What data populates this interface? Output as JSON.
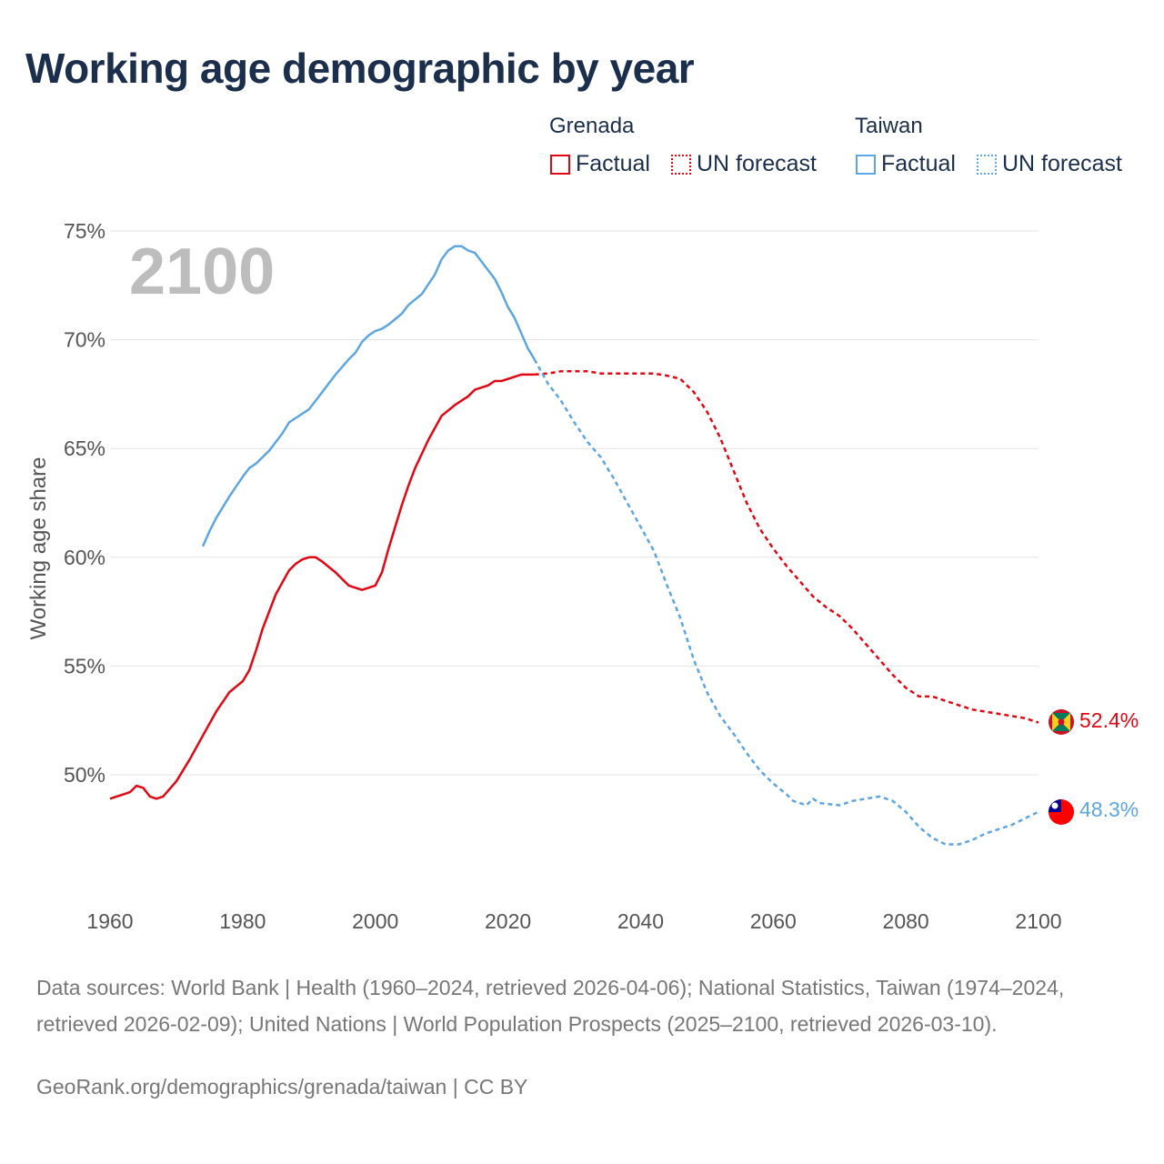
{
  "title": "Working age demographic by year",
  "legend": {
    "groups": [
      {
        "name": "Grenada",
        "factual": "Factual",
        "forecast": "UN forecast",
        "color": "#e30613"
      },
      {
        "name": "Taiwan",
        "factual": "Factual",
        "forecast": "UN forecast",
        "color": "#5ea6e2"
      }
    ]
  },
  "year_marker": "2100",
  "footer": {
    "sources": "Data sources: World Bank | Health (1960–2024, retrieved 2026-04-06); National Statistics, Taiwan (1974–2024, retrieved 2026-02-09); United Nations | World Population Prospects (2025–2100, retrieved 2026-03-10).",
    "link": "GeoRank.org/demographics/grenada/taiwan | CC BY"
  },
  "end_labels": {
    "grenada": "52.4%",
    "taiwan": "48.3%"
  },
  "icons": {
    "grenada": "grenada-flag-icon",
    "taiwan": "taiwan-flag-icon"
  },
  "chart_data": {
    "type": "line",
    "title": "Working age demographic by year",
    "xlabel": "",
    "ylabel": "Working age share",
    "xlim": [
      1960,
      2100
    ],
    "ylim": [
      45,
      76
    ],
    "x_ticks": [
      1960,
      1980,
      2000,
      2020,
      2040,
      2060,
      2080,
      2100
    ],
    "y_ticks": [
      50,
      55,
      60,
      65,
      70,
      75
    ],
    "y_tick_labels": [
      "50%",
      "55%",
      "60%",
      "65%",
      "70%",
      "75%"
    ],
    "x_tick_labels": [
      "1960",
      "1980",
      "2000",
      "2020",
      "2040",
      "2060",
      "2080",
      "2100"
    ],
    "series": [
      {
        "name": "Grenada",
        "color": "#e30613",
        "factual": [
          [
            1960,
            48.9
          ],
          [
            1962,
            49.1
          ],
          [
            1963,
            49.2
          ],
          [
            1964,
            49.5
          ],
          [
            1965,
            49.4
          ],
          [
            1966,
            49.0
          ],
          [
            1967,
            48.9
          ],
          [
            1968,
            49.0
          ],
          [
            1970,
            49.7
          ],
          [
            1972,
            50.7
          ],
          [
            1974,
            51.8
          ],
          [
            1976,
            52.9
          ],
          [
            1978,
            53.8
          ],
          [
            1980,
            54.3
          ],
          [
            1981,
            54.8
          ],
          [
            1982,
            55.7
          ],
          [
            1983,
            56.7
          ],
          [
            1985,
            58.3
          ],
          [
            1987,
            59.4
          ],
          [
            1988,
            59.7
          ],
          [
            1989,
            59.9
          ],
          [
            1990,
            60.0
          ],
          [
            1991,
            60.0
          ],
          [
            1992,
            59.8
          ],
          [
            1994,
            59.3
          ],
          [
            1996,
            58.7
          ],
          [
            1998,
            58.5
          ],
          [
            2000,
            58.7
          ],
          [
            2001,
            59.3
          ],
          [
            2002,
            60.4
          ],
          [
            2004,
            62.4
          ],
          [
            2005,
            63.3
          ],
          [
            2006,
            64.1
          ],
          [
            2008,
            65.4
          ],
          [
            2010,
            66.5
          ],
          [
            2012,
            67.0
          ],
          [
            2014,
            67.4
          ],
          [
            2015,
            67.7
          ],
          [
            2017,
            67.9
          ],
          [
            2018,
            68.1
          ],
          [
            2019,
            68.1
          ],
          [
            2020,
            68.2
          ],
          [
            2022,
            68.4
          ],
          [
            2024,
            68.4
          ]
        ],
        "forecast": [
          [
            2024,
            68.4
          ],
          [
            2026,
            68.45
          ],
          [
            2028,
            68.55
          ],
          [
            2030,
            68.55
          ],
          [
            2032,
            68.55
          ],
          [
            2034,
            68.45
          ],
          [
            2036,
            68.45
          ],
          [
            2040,
            68.45
          ],
          [
            2042,
            68.45
          ],
          [
            2044,
            68.35
          ],
          [
            2046,
            68.2
          ],
          [
            2048,
            67.6
          ],
          [
            2050,
            66.7
          ],
          [
            2052,
            65.5
          ],
          [
            2054,
            64.0
          ],
          [
            2056,
            62.5
          ],
          [
            2058,
            61.3
          ],
          [
            2060,
            60.4
          ],
          [
            2062,
            59.6
          ],
          [
            2064,
            58.9
          ],
          [
            2066,
            58.2
          ],
          [
            2068,
            57.7
          ],
          [
            2070,
            57.3
          ],
          [
            2072,
            56.7
          ],
          [
            2074,
            56.0
          ],
          [
            2076,
            55.3
          ],
          [
            2078,
            54.6
          ],
          [
            2080,
            54.0
          ],
          [
            2082,
            53.6
          ],
          [
            2084,
            53.6
          ],
          [
            2086,
            53.4
          ],
          [
            2088,
            53.2
          ],
          [
            2090,
            53.0
          ],
          [
            2094,
            52.8
          ],
          [
            2098,
            52.6
          ],
          [
            2100,
            52.4
          ]
        ]
      },
      {
        "name": "Taiwan",
        "color": "#5ea6e2",
        "factual": [
          [
            1974,
            60.5
          ],
          [
            1975,
            61.2
          ],
          [
            1976,
            61.8
          ],
          [
            1978,
            62.8
          ],
          [
            1980,
            63.7
          ],
          [
            1981,
            64.1
          ],
          [
            1982,
            64.3
          ],
          [
            1984,
            64.9
          ],
          [
            1986,
            65.7
          ],
          [
            1987,
            66.2
          ],
          [
            1990,
            66.8
          ],
          [
            1991,
            67.2
          ],
          [
            1992,
            67.6
          ],
          [
            1994,
            68.4
          ],
          [
            1996,
            69.1
          ],
          [
            1997,
            69.4
          ],
          [
            1998,
            69.9
          ],
          [
            1999,
            70.2
          ],
          [
            2000,
            70.4
          ],
          [
            2001,
            70.5
          ],
          [
            2002,
            70.7
          ],
          [
            2004,
            71.2
          ],
          [
            2005,
            71.6
          ],
          [
            2007,
            72.1
          ],
          [
            2009,
            73.0
          ],
          [
            2010,
            73.7
          ],
          [
            2011,
            74.1
          ],
          [
            2012,
            74.3
          ],
          [
            2013,
            74.3
          ],
          [
            2014,
            74.1
          ],
          [
            2015,
            74.0
          ],
          [
            2016,
            73.6
          ],
          [
            2018,
            72.8
          ],
          [
            2019,
            72.2
          ],
          [
            2020,
            71.5
          ],
          [
            2021,
            71.0
          ],
          [
            2022,
            70.3
          ],
          [
            2023,
            69.6
          ],
          [
            2024,
            69.1
          ]
        ],
        "forecast": [
          [
            2024,
            69.1
          ],
          [
            2026,
            68.0
          ],
          [
            2028,
            67.2
          ],
          [
            2030,
            66.2
          ],
          [
            2032,
            65.3
          ],
          [
            2034,
            64.6
          ],
          [
            2036,
            63.6
          ],
          [
            2038,
            62.5
          ],
          [
            2040,
            61.4
          ],
          [
            2042,
            60.3
          ],
          [
            2044,
            58.7
          ],
          [
            2046,
            57.2
          ],
          [
            2048,
            55.3
          ],
          [
            2050,
            53.8
          ],
          [
            2052,
            52.7
          ],
          [
            2054,
            51.9
          ],
          [
            2056,
            51.0
          ],
          [
            2058,
            50.2
          ],
          [
            2060,
            49.6
          ],
          [
            2062,
            49.1
          ],
          [
            2063,
            48.8
          ],
          [
            2064,
            48.7
          ],
          [
            2065,
            48.6
          ],
          [
            2066,
            48.9
          ],
          [
            2067,
            48.7
          ],
          [
            2070,
            48.6
          ],
          [
            2072,
            48.8
          ],
          [
            2074,
            48.9
          ],
          [
            2076,
            49.0
          ],
          [
            2078,
            48.8
          ],
          [
            2080,
            48.3
          ],
          [
            2082,
            47.6
          ],
          [
            2084,
            47.1
          ],
          [
            2086,
            46.8
          ],
          [
            2088,
            46.8
          ],
          [
            2090,
            47.0
          ],
          [
            2092,
            47.3
          ],
          [
            2094,
            47.5
          ],
          [
            2096,
            47.7
          ],
          [
            2098,
            48.0
          ],
          [
            2100,
            48.3
          ]
        ]
      }
    ]
  }
}
